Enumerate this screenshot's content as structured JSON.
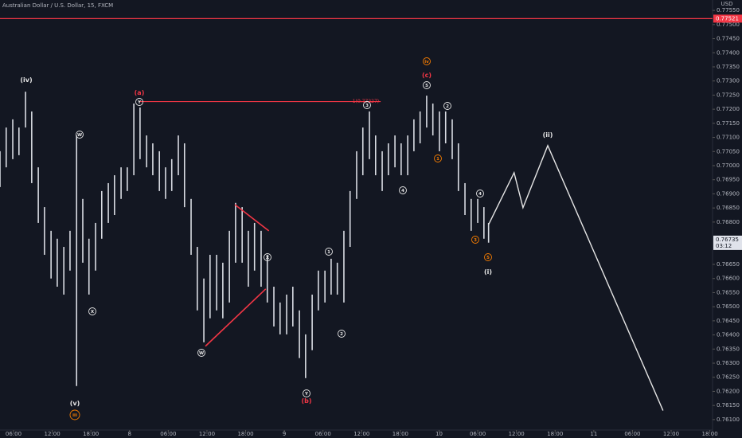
{
  "chart_data": {
    "type": "ohlc",
    "title": "Australian Dollar / U.S. Dollar, 15, FXCM",
    "currency": "USD",
    "color": "#d9dce3",
    "background": "#131722",
    "xlim": [
      -0.35,
      18.07
    ],
    "ylim": [
      0.76063,
      0.77587
    ],
    "xticks": [
      {
        "value": 0,
        "label": "06:00"
      },
      {
        "value": 1,
        "label": "12:00"
      },
      {
        "value": 2,
        "label": "18:00"
      },
      {
        "value": 3,
        "label": "8"
      },
      {
        "value": 4,
        "label": "06:00"
      },
      {
        "value": 5,
        "label": "12:00"
      },
      {
        "value": 6,
        "label": "18:00"
      },
      {
        "value": 7,
        "label": "9"
      },
      {
        "value": 8,
        "label": "06:00"
      },
      {
        "value": 9,
        "label": "12:00"
      },
      {
        "value": 10,
        "label": "18:00"
      },
      {
        "value": 11,
        "label": "10"
      },
      {
        "value": 12,
        "label": "06:00"
      },
      {
        "value": 13,
        "label": "12:00"
      },
      {
        "value": 14,
        "label": "18:00"
      },
      {
        "value": 15,
        "label": "11"
      },
      {
        "value": 16,
        "label": "06:00"
      },
      {
        "value": 17,
        "label": "12:00"
      },
      {
        "value": 18,
        "label": "18:00"
      }
    ],
    "yticks": [
      {
        "value": 0.7755,
        "label": "0.77550"
      },
      {
        "value": 0.775,
        "label": "0.77500"
      },
      {
        "value": 0.7745,
        "label": "0.77450"
      },
      {
        "value": 0.774,
        "label": "0.77400"
      },
      {
        "value": 0.7735,
        "label": "0.77350"
      },
      {
        "value": 0.773,
        "label": "0.77300"
      },
      {
        "value": 0.7725,
        "label": "0.77250"
      },
      {
        "value": 0.772,
        "label": "0.77200"
      },
      {
        "value": 0.7715,
        "label": "0.77150"
      },
      {
        "value": 0.771,
        "label": "0.77100"
      },
      {
        "value": 0.7705,
        "label": "0.77050"
      },
      {
        "value": 0.77,
        "label": "0.77000"
      },
      {
        "value": 0.7695,
        "label": "0.76950"
      },
      {
        "value": 0.769,
        "label": "0.76900"
      },
      {
        "value": 0.7685,
        "label": "0.76850"
      },
      {
        "value": 0.768,
        "label": "0.76800"
      },
      {
        "value": 0.7665,
        "label": "0.76650"
      },
      {
        "value": 0.766,
        "label": "0.76600"
      },
      {
        "value": 0.7655,
        "label": "0.76550"
      },
      {
        "value": 0.765,
        "label": "0.76500"
      },
      {
        "value": 0.7645,
        "label": "0.76450"
      },
      {
        "value": 0.764,
        "label": "0.76400"
      },
      {
        "value": 0.7635,
        "label": "0.76350"
      },
      {
        "value": 0.763,
        "label": "0.76300"
      },
      {
        "value": 0.7625,
        "label": "0.76250"
      },
      {
        "value": 0.762,
        "label": "0.76200"
      },
      {
        "value": 0.7615,
        "label": "0.76150"
      },
      {
        "value": 0.761,
        "label": "0.76100"
      }
    ],
    "bars": {
      "x": [
        -0.35,
        -0.19,
        -0.02,
        0.14,
        0.31,
        0.47,
        0.64,
        0.8,
        0.97,
        1.13,
        1.3,
        1.46,
        1.63,
        1.79,
        1.95,
        2.12,
        2.28,
        2.45,
        2.61,
        2.78,
        2.94,
        3.11,
        3.27,
        3.44,
        3.6,
        3.77,
        3.93,
        4.09,
        4.26,
        4.42,
        4.59,
        4.75,
        4.92,
        5.08,
        5.25,
        5.41,
        5.58,
        5.74,
        5.91,
        6.07,
        6.23,
        6.4,
        6.56,
        6.73,
        6.89,
        7.06,
        7.22,
        7.39,
        7.55,
        7.72,
        7.88,
        8.05,
        8.21,
        8.37,
        8.54,
        8.7,
        8.87,
        9.03,
        9.2,
        9.36,
        9.53,
        9.69,
        9.86,
        10.02,
        10.19,
        10.35,
        10.51,
        10.68,
        10.84,
        11.01,
        11.17,
        11.34,
        11.5,
        11.67,
        11.83,
        12.0,
        12.16,
        12.28
      ],
      "high": [
        0.77051,
        0.77135,
        0.77164,
        0.77135,
        0.77262,
        0.77192,
        0.76994,
        0.76853,
        0.76769,
        0.76741,
        0.76712,
        0.76769,
        0.77107,
        0.76882,
        0.76741,
        0.76797,
        0.7691,
        0.76938,
        0.76966,
        0.76994,
        0.76994,
        0.7722,
        0.77206,
        0.77107,
        0.77079,
        0.77051,
        0.76994,
        0.77023,
        0.77107,
        0.77079,
        0.76882,
        0.76712,
        0.766,
        0.76684,
        0.76684,
        0.76656,
        0.76769,
        0.76868,
        0.76853,
        0.76769,
        0.76797,
        0.76769,
        0.76684,
        0.76571,
        0.76515,
        0.76543,
        0.76571,
        0.76487,
        0.76402,
        0.76543,
        0.76628,
        0.76628,
        0.7667,
        0.76656,
        0.76769,
        0.7691,
        0.77051,
        0.77135,
        0.77192,
        0.77107,
        0.77051,
        0.77079,
        0.77107,
        0.77079,
        0.77107,
        0.77164,
        0.77192,
        0.77248,
        0.7722,
        0.77192,
        0.77192,
        0.77164,
        0.77079,
        0.76938,
        0.76882,
        0.76882,
        0.76853,
        0.76797
      ],
      "low": [
        0.76924,
        0.76994,
        0.77023,
        0.77037,
        0.77135,
        0.76938,
        0.76797,
        0.76684,
        0.766,
        0.76571,
        0.76543,
        0.76628,
        0.76219,
        0.76656,
        0.76543,
        0.76628,
        0.76741,
        0.76797,
        0.76825,
        0.76882,
        0.7691,
        0.76966,
        0.77023,
        0.76994,
        0.76966,
        0.7691,
        0.76882,
        0.7691,
        0.76966,
        0.76853,
        0.76684,
        0.76487,
        0.76374,
        0.76459,
        0.76487,
        0.76459,
        0.76515,
        0.76656,
        0.76656,
        0.76571,
        0.76628,
        0.76571,
        0.76515,
        0.7643,
        0.76402,
        0.76402,
        0.7643,
        0.76318,
        0.76247,
        0.76346,
        0.76487,
        0.76515,
        0.76543,
        0.76543,
        0.76515,
        0.76712,
        0.76882,
        0.76966,
        0.77023,
        0.76966,
        0.7691,
        0.76966,
        0.76994,
        0.76966,
        0.76966,
        0.77051,
        0.77079,
        0.77135,
        0.77107,
        0.77051,
        0.77079,
        0.77023,
        0.7691,
        0.76825,
        0.76769,
        0.76797,
        0.76741,
        0.76727
      ]
    },
    "projection": {
      "color": "#e6e6e6",
      "x": [
        12.28,
        12.94,
        13.17,
        13.81,
        16.79
      ],
      "values": [
        0.76791,
        0.76975,
        0.76851,
        0.77071,
        0.76132
      ]
    },
    "trend_lines": [
      {
        "color": "#f23645",
        "x": [
          5.72,
          6.6
        ],
        "values": [
          0.76862,
          0.76769
        ]
      },
      {
        "color": "#f23645",
        "x": [
          4.96,
          6.52
        ],
        "values": [
          0.7636,
          0.76563
        ]
      }
    ],
    "fib_line": {
      "color": "#f23645",
      "label": "1(0.77227)",
      "value": 0.77227,
      "x": [
        3.25,
        9.49
      ]
    },
    "level": 0.77521,
    "level_color": "#f23645",
    "last_price": 0.76735,
    "countdown": "03:12",
    "annotations": [
      {
        "text": "(iv)",
        "color": "#e6e6e6",
        "circled": false
      },
      {
        "text": "(v)",
        "color": "#e6e6e6",
        "circled": false
      },
      {
        "text": "iii",
        "color": "#f57c00",
        "circled": true
      },
      {
        "text": "(a)",
        "color": "#f23645",
        "circled": false
      },
      {
        "text": "Y",
        "color": "#e6e6e6",
        "circled": true
      },
      {
        "text": "W",
        "color": "#e6e6e6",
        "circled": true
      },
      {
        "text": "X",
        "color": "#e6e6e6",
        "circled": true
      },
      {
        "text": "W",
        "color": "#e6e6e6",
        "circled": true
      },
      {
        "text": "X",
        "color": "#e6e6e6",
        "circled": true
      },
      {
        "text": "Y",
        "color": "#e6e6e6",
        "circled": true
      },
      {
        "text": "(b)",
        "color": "#f23645",
        "circled": false
      },
      {
        "text": "1",
        "color": "#e6e6e6",
        "circled": true
      },
      {
        "text": "2",
        "color": "#e6e6e6",
        "circled": true
      },
      {
        "text": "3",
        "color": "#e6e6e6",
        "circled": true
      },
      {
        "text": "4",
        "color": "#e6e6e6",
        "circled": true
      },
      {
        "text": "5",
        "color": "#e6e6e6",
        "circled": true
      },
      {
        "text": "(c)",
        "color": "#f23645",
        "circled": false
      },
      {
        "text": "iv",
        "color": "#f57c00",
        "circled": true
      },
      {
        "text": "1",
        "color": "#f57c00",
        "circled": true
      },
      {
        "text": "2",
        "color": "#e6e6e6",
        "circled": true
      },
      {
        "text": "3",
        "color": "#f57c00",
        "circled": true
      },
      {
        "text": "4",
        "color": "#e6e6e6",
        "circled": true
      },
      {
        "text": "5",
        "color": "#f57c00",
        "circled": true
      },
      {
        "text": "(i)",
        "color": "#e6e6e6",
        "circled": false
      },
      {
        "text": "(ii)",
        "color": "#e6e6e6",
        "circled": false
      }
    ]
  }
}
